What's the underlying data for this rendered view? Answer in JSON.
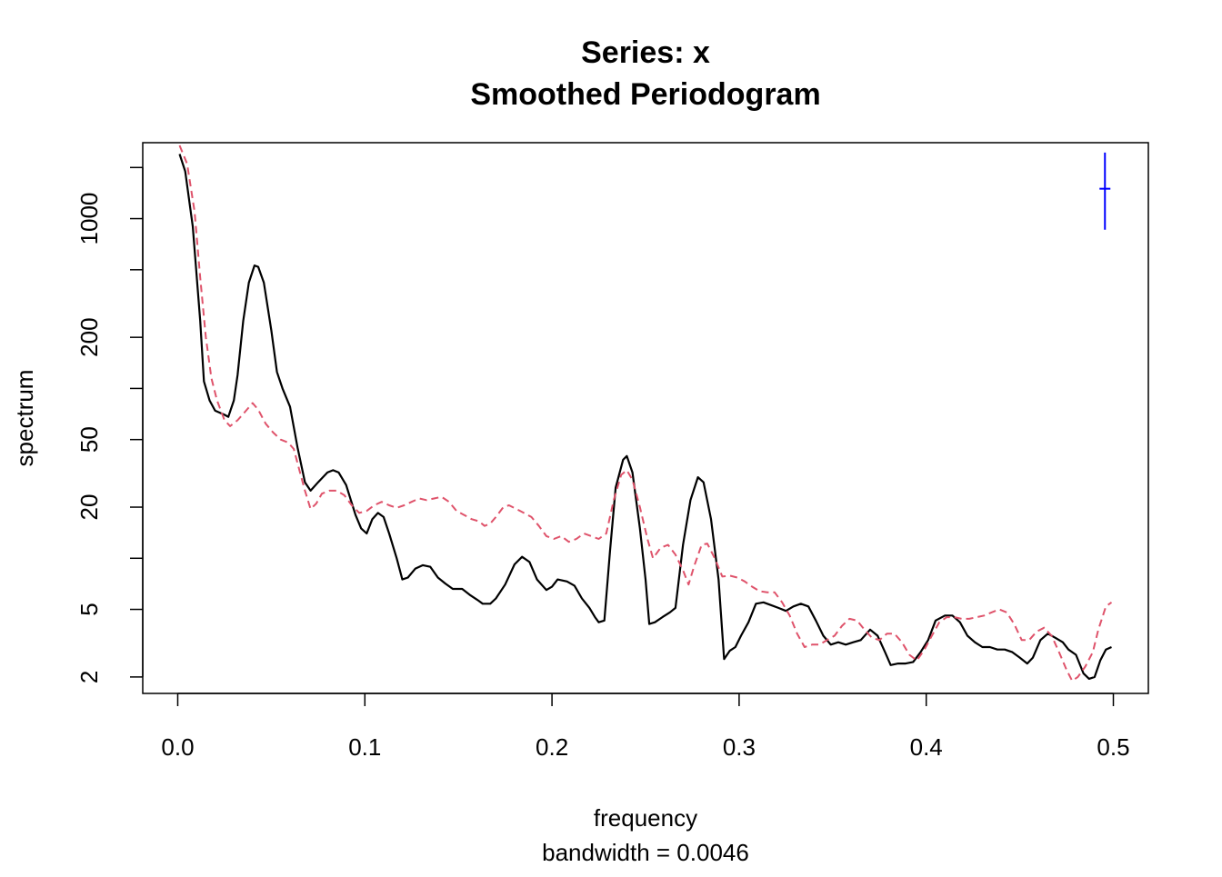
{
  "chart_data": {
    "type": "line",
    "title": "Series: x",
    "subtitle": "Smoothed Periodogram",
    "xlabel": "frequency",
    "xlabel_sub": "bandwidth = 0.0046",
    "ylabel": "spectrum",
    "y_scale": "log",
    "xlim": [
      -0.0187,
      0.5187
    ],
    "ylim": [
      1.6,
      2800
    ],
    "x_ticks": [
      {
        "value": 0.0,
        "label": "0.0"
      },
      {
        "value": 0.1,
        "label": "0.1"
      },
      {
        "value": 0.2,
        "label": "0.2"
      },
      {
        "value": 0.3,
        "label": "0.3"
      },
      {
        "value": 0.4,
        "label": "0.4"
      },
      {
        "value": 0.5,
        "label": "0.5"
      }
    ],
    "y_ticks": [
      {
        "value": 2,
        "label": "2"
      },
      {
        "value": 5,
        "label": "5"
      },
      {
        "value": 10,
        "label": ""
      },
      {
        "value": 20,
        "label": "20"
      },
      {
        "value": 50,
        "label": "50"
      },
      {
        "value": 100,
        "label": ""
      },
      {
        "value": 200,
        "label": "200"
      },
      {
        "value": 500,
        "label": ""
      },
      {
        "value": 1000,
        "label": "1000"
      },
      {
        "value": 2000,
        "label": ""
      }
    ],
    "series": [
      {
        "color": "#000000",
        "dash": "solid",
        "points": [
          [
            0.001,
            2400
          ],
          [
            0.004,
            1900
          ],
          [
            0.008,
            900
          ],
          [
            0.012,
            250
          ],
          [
            0.014,
            110
          ],
          [
            0.017,
            85
          ],
          [
            0.02,
            74
          ],
          [
            0.025,
            70
          ],
          [
            0.027,
            68
          ],
          [
            0.03,
            85
          ],
          [
            0.032,
            120
          ],
          [
            0.035,
            250
          ],
          [
            0.038,
            420
          ],
          [
            0.041,
            530
          ],
          [
            0.043,
            520
          ],
          [
            0.046,
            420
          ],
          [
            0.05,
            220
          ],
          [
            0.053,
            125
          ],
          [
            0.056,
            100
          ],
          [
            0.06,
            78
          ],
          [
            0.064,
            45
          ],
          [
            0.068,
            28
          ],
          [
            0.071,
            25
          ],
          [
            0.075,
            28
          ],
          [
            0.08,
            32
          ],
          [
            0.083,
            33
          ],
          [
            0.086,
            32
          ],
          [
            0.09,
            27
          ],
          [
            0.095,
            18
          ],
          [
            0.098,
            15
          ],
          [
            0.101,
            14
          ],
          [
            0.104,
            17
          ],
          [
            0.107,
            18.5
          ],
          [
            0.11,
            17.5
          ],
          [
            0.113,
            14
          ],
          [
            0.117,
            10
          ],
          [
            0.12,
            7.5
          ],
          [
            0.123,
            7.7
          ],
          [
            0.127,
            8.7
          ],
          [
            0.131,
            9.1
          ],
          [
            0.135,
            8.9
          ],
          [
            0.139,
            7.7
          ],
          [
            0.143,
            7.1
          ],
          [
            0.147,
            6.6
          ],
          [
            0.152,
            6.6
          ],
          [
            0.156,
            6.1
          ],
          [
            0.16,
            5.7
          ],
          [
            0.163,
            5.4
          ],
          [
            0.167,
            5.4
          ],
          [
            0.17,
            5.8
          ],
          [
            0.175,
            7.0
          ],
          [
            0.18,
            9.2
          ],
          [
            0.184,
            10.2
          ],
          [
            0.188,
            9.5
          ],
          [
            0.192,
            7.5
          ],
          [
            0.197,
            6.5
          ],
          [
            0.2,
            6.8
          ],
          [
            0.203,
            7.5
          ],
          [
            0.208,
            7.3
          ],
          [
            0.212,
            6.9
          ],
          [
            0.216,
            5.8
          ],
          [
            0.22,
            5.1
          ],
          [
            0.223,
            4.5
          ],
          [
            0.225,
            4.2
          ],
          [
            0.228,
            4.3
          ],
          [
            0.231,
            11
          ],
          [
            0.234,
            26
          ],
          [
            0.238,
            38
          ],
          [
            0.24,
            40
          ],
          [
            0.243,
            32
          ],
          [
            0.247,
            15
          ],
          [
            0.25,
            7.5
          ],
          [
            0.252,
            4.1
          ],
          [
            0.255,
            4.2
          ],
          [
            0.259,
            4.5
          ],
          [
            0.263,
            4.8
          ],
          [
            0.266,
            5.1
          ],
          [
            0.27,
            12
          ],
          [
            0.274,
            22
          ],
          [
            0.278,
            30
          ],
          [
            0.281,
            28
          ],
          [
            0.285,
            17
          ],
          [
            0.289,
            7.5
          ],
          [
            0.292,
            2.55
          ],
          [
            0.295,
            2.85
          ],
          [
            0.298,
            3.0
          ],
          [
            0.301,
            3.5
          ],
          [
            0.305,
            4.2
          ],
          [
            0.309,
            5.4
          ],
          [
            0.313,
            5.5
          ],
          [
            0.317,
            5.3
          ],
          [
            0.321,
            5.1
          ],
          [
            0.325,
            4.9
          ],
          [
            0.329,
            5.2
          ],
          [
            0.333,
            5.4
          ],
          [
            0.337,
            5.2
          ],
          [
            0.341,
            4.3
          ],
          [
            0.345,
            3.5
          ],
          [
            0.349,
            3.1
          ],
          [
            0.353,
            3.2
          ],
          [
            0.357,
            3.1
          ],
          [
            0.361,
            3.2
          ],
          [
            0.365,
            3.3
          ],
          [
            0.37,
            3.8
          ],
          [
            0.374,
            3.5
          ],
          [
            0.378,
            2.8
          ],
          [
            0.381,
            2.35
          ],
          [
            0.385,
            2.4
          ],
          [
            0.389,
            2.4
          ],
          [
            0.393,
            2.45
          ],
          [
            0.397,
            2.8
          ],
          [
            0.401,
            3.3
          ],
          [
            0.405,
            4.3
          ],
          [
            0.41,
            4.6
          ],
          [
            0.414,
            4.6
          ],
          [
            0.418,
            4.2
          ],
          [
            0.422,
            3.5
          ],
          [
            0.426,
            3.2
          ],
          [
            0.43,
            3.0
          ],
          [
            0.434,
            3.0
          ],
          [
            0.438,
            2.9
          ],
          [
            0.442,
            2.9
          ],
          [
            0.446,
            2.8
          ],
          [
            0.45,
            2.6
          ],
          [
            0.454,
            2.4
          ],
          [
            0.457,
            2.6
          ],
          [
            0.461,
            3.3
          ],
          [
            0.465,
            3.6
          ],
          [
            0.469,
            3.4
          ],
          [
            0.473,
            3.2
          ],
          [
            0.476,
            2.9
          ],
          [
            0.48,
            2.7
          ],
          [
            0.484,
            2.1
          ],
          [
            0.487,
            1.95
          ],
          [
            0.49,
            2.0
          ],
          [
            0.493,
            2.5
          ],
          [
            0.496,
            2.9
          ],
          [
            0.499,
            3.0
          ]
        ]
      },
      {
        "color": "#df536b",
        "dash": "dashed",
        "points": [
          [
            0.001,
            2700
          ],
          [
            0.005,
            2100
          ],
          [
            0.009,
            1100
          ],
          [
            0.012,
            450
          ],
          [
            0.015,
            200
          ],
          [
            0.018,
            115
          ],
          [
            0.021,
            85
          ],
          [
            0.025,
            65
          ],
          [
            0.028,
            60
          ],
          [
            0.032,
            65
          ],
          [
            0.036,
            73
          ],
          [
            0.04,
            82
          ],
          [
            0.043,
            75
          ],
          [
            0.047,
            62
          ],
          [
            0.051,
            55
          ],
          [
            0.055,
            50
          ],
          [
            0.059,
            48
          ],
          [
            0.062,
            44
          ],
          [
            0.065,
            33
          ],
          [
            0.068,
            25
          ],
          [
            0.071,
            19.5
          ],
          [
            0.074,
            21
          ],
          [
            0.077,
            24
          ],
          [
            0.081,
            25
          ],
          [
            0.085,
            25
          ],
          [
            0.089,
            23.5
          ],
          [
            0.093,
            20.5
          ],
          [
            0.097,
            18.5
          ],
          [
            0.101,
            19
          ],
          [
            0.105,
            20.5
          ],
          [
            0.109,
            21.5
          ],
          [
            0.113,
            20.5
          ],
          [
            0.117,
            19.8
          ],
          [
            0.121,
            20.5
          ],
          [
            0.125,
            21.5
          ],
          [
            0.129,
            22.5
          ],
          [
            0.133,
            22
          ],
          [
            0.137,
            22.5
          ],
          [
            0.141,
            23
          ],
          [
            0.145,
            21.5
          ],
          [
            0.149,
            19
          ],
          [
            0.153,
            18
          ],
          [
            0.157,
            17
          ],
          [
            0.161,
            16.5
          ],
          [
            0.164,
            15.5
          ],
          [
            0.167,
            16
          ],
          [
            0.17,
            17.5
          ],
          [
            0.174,
            20
          ],
          [
            0.177,
            20.5
          ],
          [
            0.181,
            19.5
          ],
          [
            0.185,
            18.5
          ],
          [
            0.189,
            17.5
          ],
          [
            0.193,
            15.5
          ],
          [
            0.197,
            13.5
          ],
          [
            0.201,
            13
          ],
          [
            0.205,
            13.5
          ],
          [
            0.209,
            12.5
          ],
          [
            0.213,
            13
          ],
          [
            0.217,
            14
          ],
          [
            0.221,
            13.5
          ],
          [
            0.225,
            13
          ],
          [
            0.229,
            14
          ],
          [
            0.233,
            22
          ],
          [
            0.237,
            31
          ],
          [
            0.24,
            33
          ],
          [
            0.243,
            29
          ],
          [
            0.247,
            20
          ],
          [
            0.251,
            13
          ],
          [
            0.254,
            10
          ],
          [
            0.258,
            11.5
          ],
          [
            0.262,
            12
          ],
          [
            0.266,
            10.5
          ],
          [
            0.27,
            8.5
          ],
          [
            0.273,
            7.0
          ],
          [
            0.276,
            9.0
          ],
          [
            0.28,
            12
          ],
          [
            0.283,
            12.2
          ],
          [
            0.287,
            10
          ],
          [
            0.291,
            7.8
          ],
          [
            0.295,
            7.9
          ],
          [
            0.299,
            7.7
          ],
          [
            0.303,
            7.3
          ],
          [
            0.307,
            6.8
          ],
          [
            0.311,
            6.4
          ],
          [
            0.315,
            6.3
          ],
          [
            0.319,
            6.3
          ],
          [
            0.323,
            5.5
          ],
          [
            0.327,
            4.6
          ],
          [
            0.331,
            3.6
          ],
          [
            0.335,
            3.0
          ],
          [
            0.339,
            3.1
          ],
          [
            0.343,
            3.1
          ],
          [
            0.347,
            3.3
          ],
          [
            0.351,
            3.5
          ],
          [
            0.355,
            4.0
          ],
          [
            0.359,
            4.4
          ],
          [
            0.363,
            4.3
          ],
          [
            0.367,
            3.8
          ],
          [
            0.371,
            3.4
          ],
          [
            0.375,
            3.3
          ],
          [
            0.379,
            3.6
          ],
          [
            0.383,
            3.6
          ],
          [
            0.387,
            3.2
          ],
          [
            0.391,
            2.7
          ],
          [
            0.395,
            2.5
          ],
          [
            0.399,
            2.9
          ],
          [
            0.403,
            3.5
          ],
          [
            0.407,
            4.2
          ],
          [
            0.411,
            4.5
          ],
          [
            0.415,
            4.5
          ],
          [
            0.419,
            4.4
          ],
          [
            0.423,
            4.4
          ],
          [
            0.427,
            4.5
          ],
          [
            0.431,
            4.6
          ],
          [
            0.435,
            4.8
          ],
          [
            0.439,
            5.0
          ],
          [
            0.443,
            4.8
          ],
          [
            0.447,
            4.1
          ],
          [
            0.451,
            3.3
          ],
          [
            0.455,
            3.3
          ],
          [
            0.459,
            3.7
          ],
          [
            0.463,
            3.9
          ],
          [
            0.467,
            3.5
          ],
          [
            0.471,
            2.8
          ],
          [
            0.475,
            2.2
          ],
          [
            0.478,
            1.9
          ],
          [
            0.481,
            2.0
          ],
          [
            0.485,
            2.3
          ],
          [
            0.489,
            2.8
          ],
          [
            0.492,
            3.8
          ],
          [
            0.496,
            5.2
          ],
          [
            0.499,
            5.5
          ]
        ]
      }
    ],
    "ci_bar": {
      "color": "#0000ff",
      "x": 0.4955,
      "center": 1500,
      "lower": 860,
      "upper": 2450
    }
  }
}
